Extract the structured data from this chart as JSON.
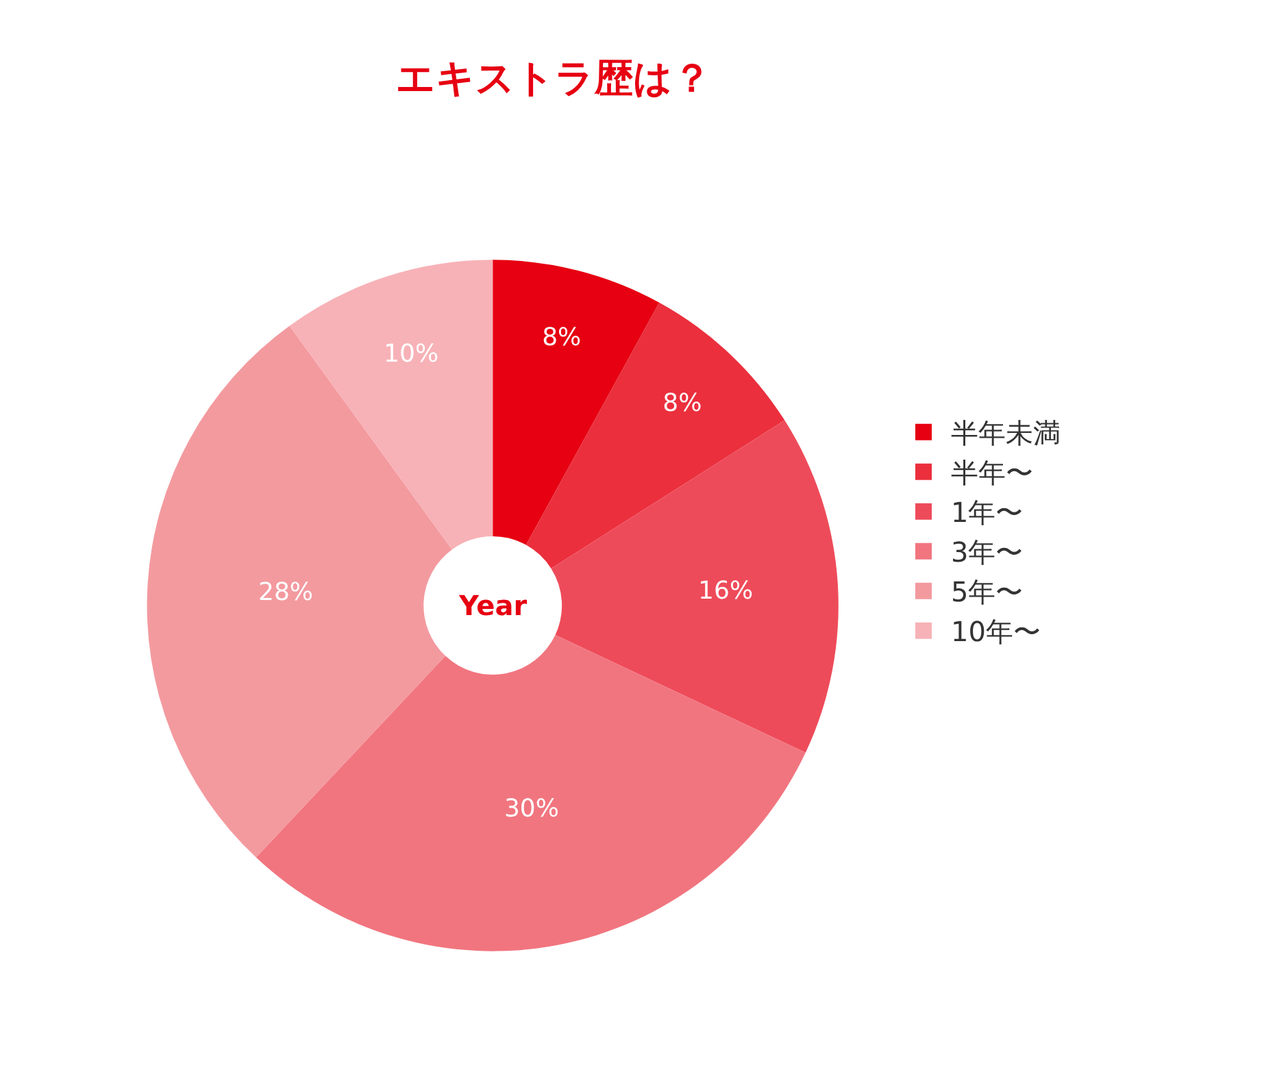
{
  "chart_data": {
    "type": "donut",
    "title": "エキストラ歴は？",
    "categories": [
      "半年未満",
      "半年〜",
      "1年〜",
      "3年〜",
      "5年〜",
      "10年〜"
    ],
    "values": [
      8,
      8,
      16,
      30,
      28,
      10
    ],
    "value_labels": [
      "8%",
      "8%",
      "16%",
      "30%",
      "28%",
      "10%"
    ],
    "colors": [
      "#e60012",
      "#eb2f3d",
      "#ee4b5a",
      "#f1757f",
      "#f39a9f",
      "#f7b2b7"
    ],
    "annotations": [
      "Year"
    ],
    "legend": "right"
  }
}
